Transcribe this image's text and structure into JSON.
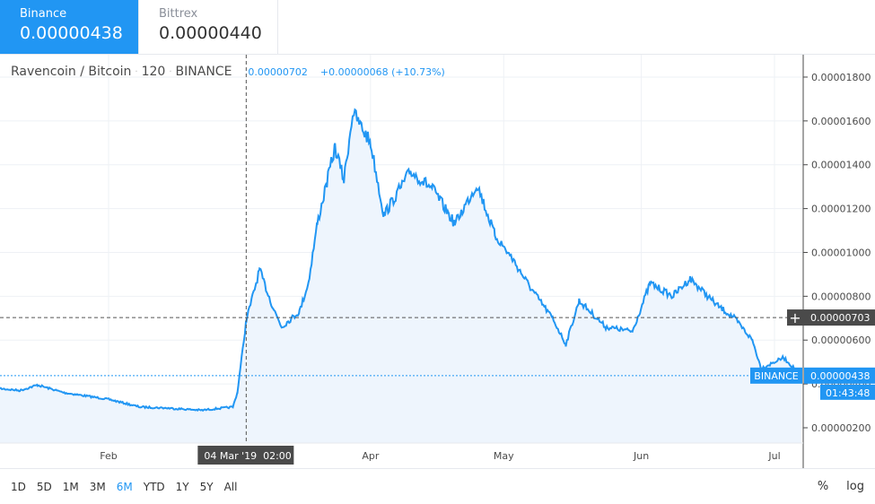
{
  "exchanges": [
    {
      "name": "Binance",
      "price": "0.00000438",
      "active": true
    },
    {
      "name": "Bittrex",
      "price": "0.00000440",
      "active": false
    }
  ],
  "legend": {
    "symbol": "Ravencoin / Bitcoin",
    "interval": "120",
    "exchange": "BINANCE",
    "value": "0.00000702",
    "change": "+0.00000068 (+10.73%)"
  },
  "crosshair": {
    "price_label": "0.00000703",
    "date_label": "04 Mar '19  02:00",
    "date": "2019-03-04"
  },
  "last_price": {
    "exchange_label": "BINANCE",
    "price": "0.00000438",
    "countdown": "01:43:48",
    "value": 4.38
  },
  "colors": {
    "accent": "#2196f3",
    "line": "#2196f3",
    "fill": "#eef5fd",
    "crosshair_label": "#4a4a4a"
  },
  "chart_data": {
    "type": "area",
    "yticks": [
      "0.00000200",
      "0.00000400",
      "0.00000600",
      "0.00000800",
      "0.00001000",
      "0.00001200",
      "0.00001400",
      "0.00001600",
      "0.00001800"
    ],
    "ytick_values": [
      2,
      4,
      6,
      8,
      10,
      12,
      14,
      16,
      18
    ],
    "y_unit": "1e-6 BTC",
    "ylim": [
      0.5,
      19.5
    ],
    "xticks": [
      {
        "label": "Feb",
        "date": "2019-02-01"
      },
      {
        "label": "Apr",
        "date": "2019-04-01"
      },
      {
        "label": "May",
        "date": "2019-05-01"
      },
      {
        "label": "Jun",
        "date": "2019-06-01"
      },
      {
        "label": "Jul",
        "date": "2019-07-01"
      }
    ],
    "xlim": [
      "2019-01-07",
      "2019-07-07"
    ],
    "grid": true,
    "points": [
      [
        "2019-01-07",
        3.8
      ],
      [
        "2019-01-12",
        3.7
      ],
      [
        "2019-01-16",
        3.95
      ],
      [
        "2019-01-22",
        3.6
      ],
      [
        "2019-02-01",
        3.3
      ],
      [
        "2019-02-08",
        2.95
      ],
      [
        "2019-02-14",
        2.9
      ],
      [
        "2019-02-22",
        2.8
      ],
      [
        "2019-03-01",
        2.95
      ],
      [
        "2019-03-02",
        3.6
      ],
      [
        "2019-03-04",
        6.9
      ],
      [
        "2019-03-06",
        8.4
      ],
      [
        "2019-03-07",
        9.2
      ],
      [
        "2019-03-10",
        7.5
      ],
      [
        "2019-03-12",
        6.6
      ],
      [
        "2019-03-16",
        7.3
      ],
      [
        "2019-03-18",
        8.6
      ],
      [
        "2019-03-20",
        11.3
      ],
      [
        "2019-03-24",
        14.8
      ],
      [
        "2019-03-26",
        13.3
      ],
      [
        "2019-03-28",
        16.4
      ],
      [
        "2019-04-01",
        15.0
      ],
      [
        "2019-04-04",
        11.7
      ],
      [
        "2019-04-10",
        13.7
      ],
      [
        "2019-04-15",
        12.9
      ],
      [
        "2019-04-20",
        11.3
      ],
      [
        "2019-04-25",
        13.1
      ],
      [
        "2019-04-29",
        10.8
      ],
      [
        "2019-05-03",
        9.7
      ],
      [
        "2019-05-07",
        8.4
      ],
      [
        "2019-05-12",
        7.0
      ],
      [
        "2019-05-15",
        5.8
      ],
      [
        "2019-05-18",
        7.8
      ],
      [
        "2019-05-24",
        6.6
      ],
      [
        "2019-05-30",
        6.4
      ],
      [
        "2019-06-03",
        8.6
      ],
      [
        "2019-06-08",
        8.0
      ],
      [
        "2019-06-12",
        8.8
      ],
      [
        "2019-06-18",
        7.6
      ],
      [
        "2019-06-22",
        7.0
      ],
      [
        "2019-06-26",
        6.0
      ],
      [
        "2019-06-28",
        4.7
      ],
      [
        "2019-07-03",
        5.2
      ],
      [
        "2019-07-07",
        4.4
      ]
    ]
  },
  "toolbar": {
    "ranges": [
      "1D",
      "5D",
      "1M",
      "3M",
      "6M",
      "YTD",
      "1Y",
      "5Y",
      "All"
    ],
    "active_range": "6M",
    "percent": "%",
    "log": "log"
  }
}
